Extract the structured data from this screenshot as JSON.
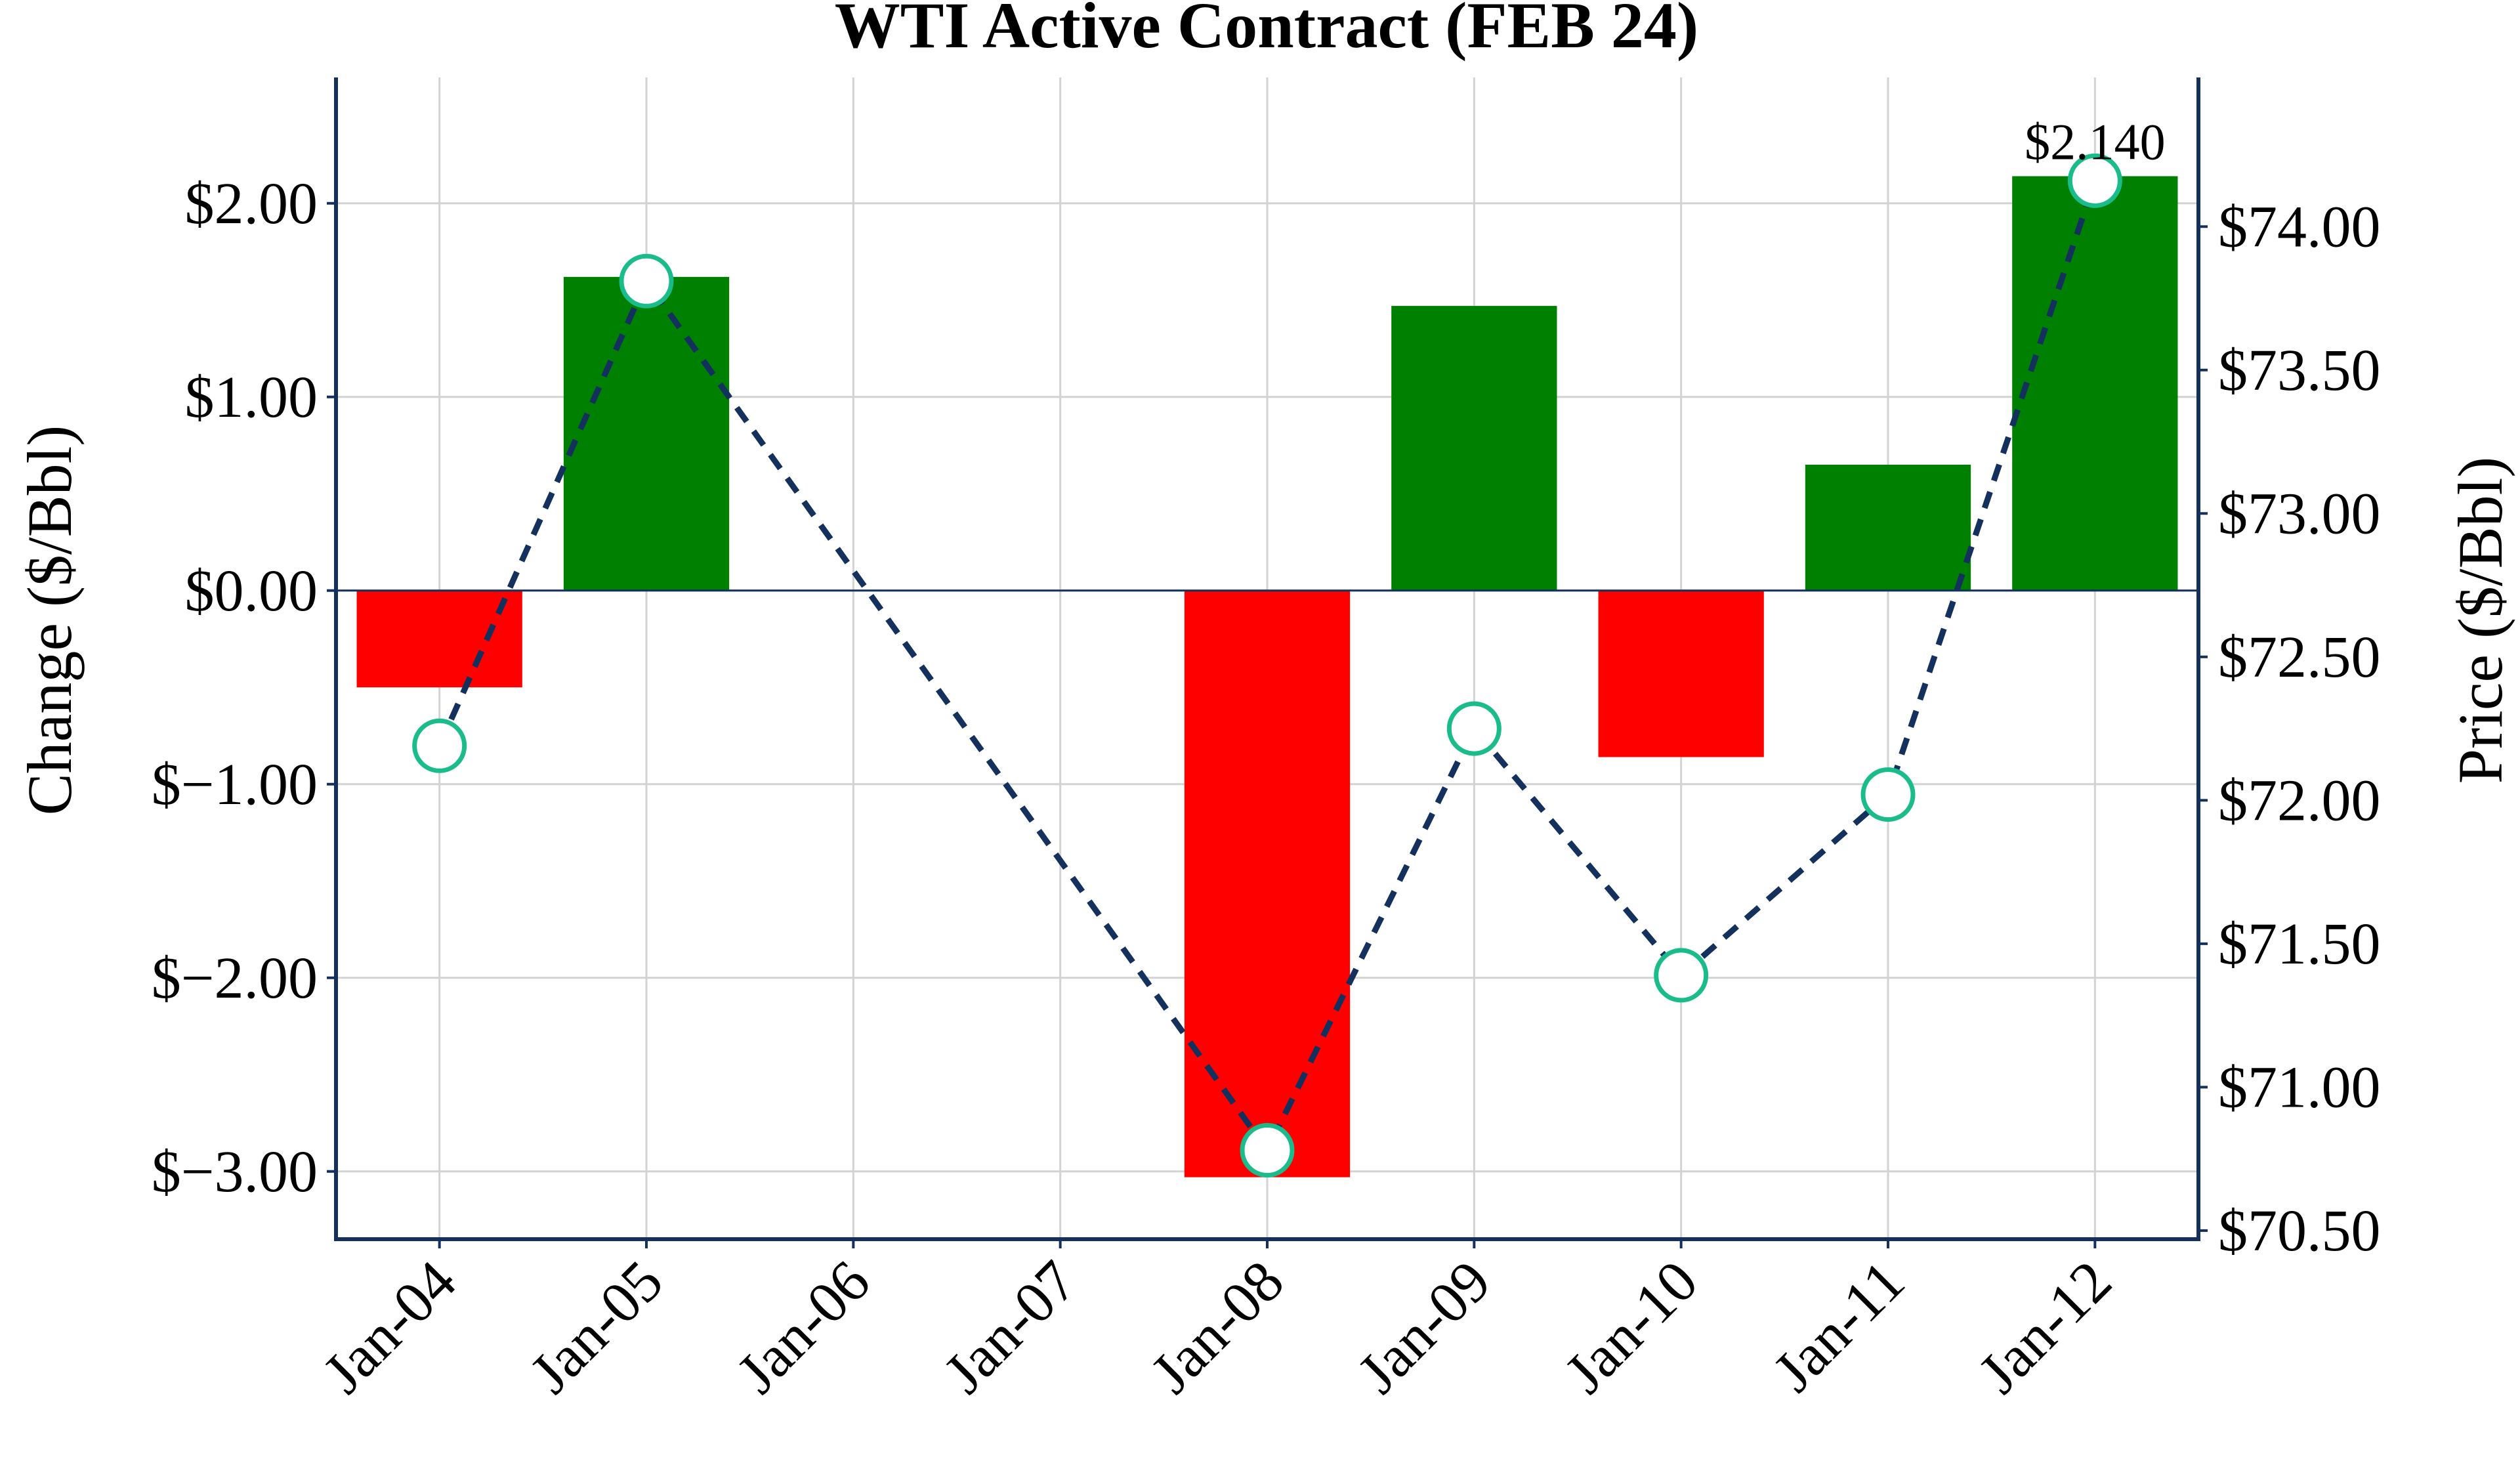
{
  "chart_data": {
    "type": "bar",
    "title": "WTI Active Contract (FEB 24)",
    "categories": [
      "Jan-04",
      "Jan-05",
      "Jan-06",
      "Jan-07",
      "Jan-08",
      "Jan-09",
      "Jan-10",
      "Jan-11",
      "Jan-12"
    ],
    "bar_series": {
      "values": [
        -0.5,
        1.62,
        null,
        null,
        -3.03,
        1.47,
        -0.86,
        0.65,
        2.14
      ],
      "positive_color": "#008000",
      "negative_color": "#ff0000"
    },
    "line_series": {
      "values": [
        72.19,
        73.81,
        null,
        null,
        70.78,
        72.25,
        71.39,
        72.02,
        74.16
      ],
      "line_color": "#13315c",
      "marker_edge_color": "#1abc8c",
      "marker_face_color": "#ffffff",
      "line_style": "dashed"
    },
    "y_left": {
      "label": "Change ($/Bbl)",
      "ylim": [
        -3.35,
        2.65
      ],
      "ticks": [
        -3,
        -2,
        -1,
        0,
        1,
        2
      ],
      "tick_labels": [
        "$−3.00",
        "$−2.00",
        "$−1.00",
        "$0.00",
        "$1.00",
        "$2.00"
      ]
    },
    "y_right": {
      "label": "Price ($/Bbl)",
      "ylim": [
        70.47,
        74.52
      ],
      "ticks": [
        70.5,
        71.0,
        71.5,
        72.0,
        72.5,
        73.0,
        73.5,
        74.0
      ],
      "tick_labels": [
        "$70.50",
        "$71.00",
        "$71.50",
        "$72.00",
        "$72.50",
        "$73.00",
        "$73.50",
        "$74.00"
      ]
    },
    "annotations": [
      {
        "category": "Jan-12",
        "value": 2.14,
        "text": "$2.140"
      }
    ],
    "grid": true,
    "axis_color": "#13315c",
    "grid_color": "#d3d3d3"
  }
}
